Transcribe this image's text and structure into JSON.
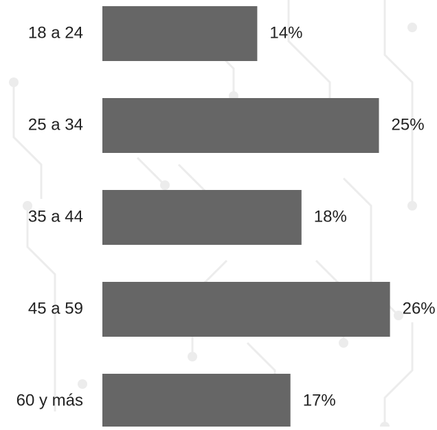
{
  "chart_data": {
    "type": "bar",
    "orientation": "horizontal",
    "categories": [
      "18 a 24",
      "25 a 34",
      "35 a 44",
      "45 a 59",
      "60 y más"
    ],
    "values": [
      14,
      25,
      18,
      26,
      17
    ],
    "value_labels": [
      "14%",
      "25%",
      "18%",
      "26%",
      "17%"
    ],
    "unit": "%",
    "title": "",
    "xlabel": "",
    "ylabel": "",
    "xlim": [
      0,
      26
    ],
    "grid": false,
    "legend": "none",
    "colors": {
      "bar": "#666666",
      "text": "#222222",
      "background": "#ffffff",
      "decoration": "#ececec"
    }
  }
}
